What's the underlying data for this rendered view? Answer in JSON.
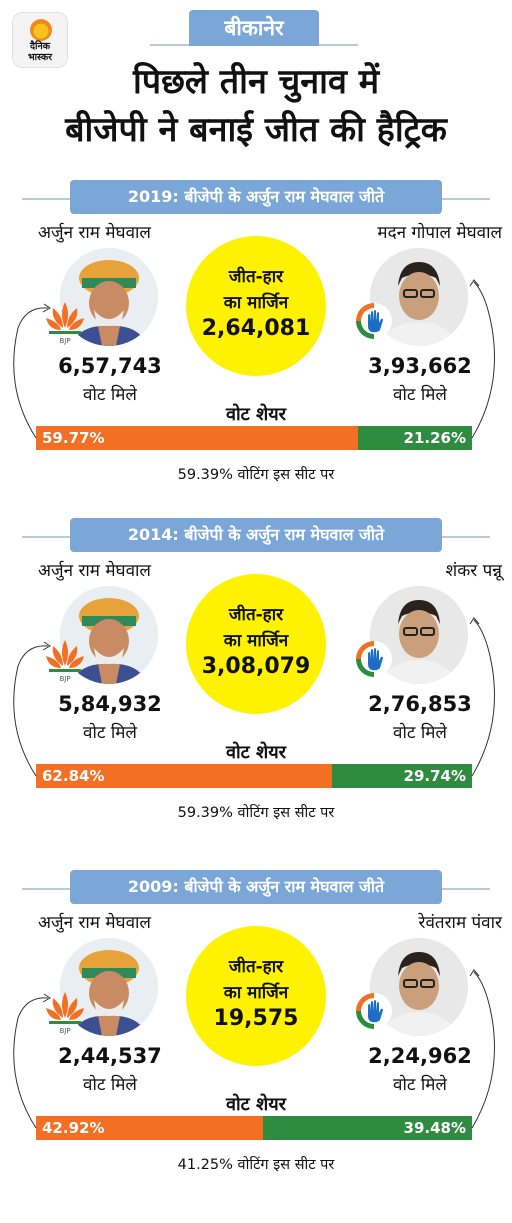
{
  "brand": {
    "logo_text_1": "दैनिक",
    "logo_text_2": "भास्कर"
  },
  "city": "बीकानेर",
  "headline": {
    "line1": "पिछले तीन चुनाव में",
    "line2": "बीजेपी ने बनाई जीत की हैट्रिक"
  },
  "common": {
    "margin_label_1": "जीत-हार",
    "margin_label_2": "का मार्जिन",
    "votes_label": "वोट मिले",
    "share_title": "वोट शेयर"
  },
  "colors": {
    "bjp": "#f36f23",
    "inc": "#2e8b3f",
    "banner": "#7aa6d8",
    "margin_circle": "#fff200"
  },
  "elections": [
    {
      "title": "2019: बीजेपी के अर्जुन राम मेघवाल जीते",
      "winner": {
        "name": "अर्जुन राम मेघवाल",
        "party_icon": "bjp-lotus-icon",
        "votes": "6,57,743",
        "share": "59.77%",
        "share_value": 59.77
      },
      "runner": {
        "name": "मदन गोपाल मेघवाल",
        "party_icon": "congress-hand-icon",
        "votes": "3,93,662",
        "share": "21.26%",
        "share_value": 21.26
      },
      "margin": "2,64,081",
      "turnout": "59.39% वोटिंग इस सीट पर"
    },
    {
      "title": "2014: बीजेपी के अर्जुन राम मेघवाल जीते",
      "winner": {
        "name": "अर्जुन राम मेघवाल",
        "party_icon": "bjp-lotus-icon",
        "votes": "5,84,932",
        "share": "62.84%",
        "share_value": 62.84
      },
      "runner": {
        "name": "शंकर पन्नू",
        "party_icon": "congress-hand-icon",
        "votes": "2,76,853",
        "share": "29.74%",
        "share_value": 29.74
      },
      "margin": "3,08,079",
      "turnout": "59.39% वोटिंग इस सीट पर"
    },
    {
      "title": "2009: बीजेपी के अर्जुन राम मेघवाल जीते",
      "winner": {
        "name": "अर्जुन राम मेघवाल",
        "party_icon": "bjp-lotus-icon",
        "votes": "2,44,537",
        "share": "42.92%",
        "share_value": 42.92
      },
      "runner": {
        "name": "रेवंतराम पंवार",
        "party_icon": "congress-hand-icon",
        "votes": "2,24,962",
        "share": "39.48%",
        "share_value": 39.48
      },
      "margin": "19,575",
      "turnout": "41.25% वोटिंग इस सीट पर"
    }
  ]
}
